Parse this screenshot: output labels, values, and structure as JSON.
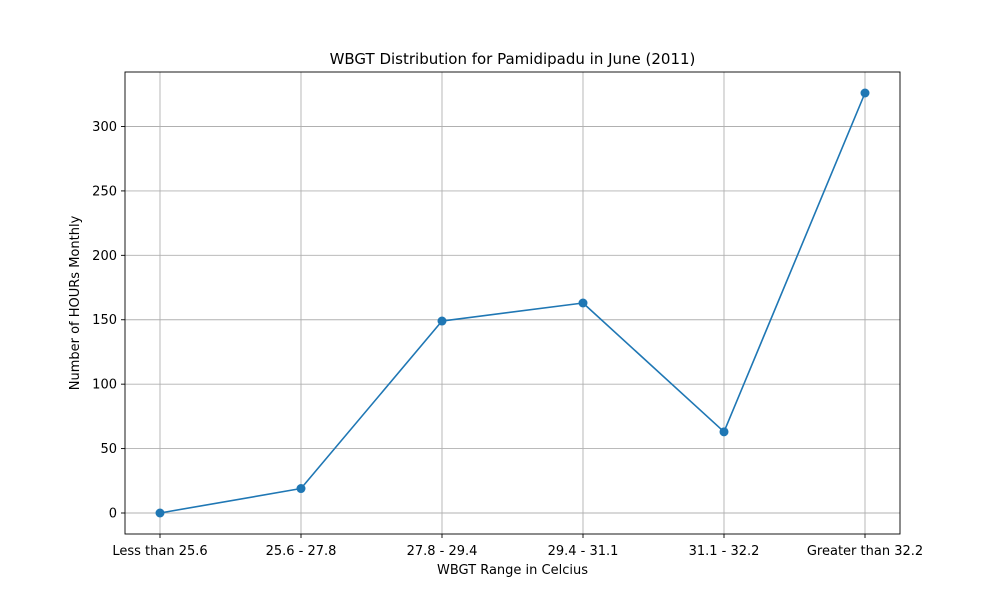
{
  "chart_data": {
    "type": "line",
    "title": "WBGT Distribution for Pamidipadu in June (2011)",
    "xlabel": "WBGT Range in Celcius",
    "ylabel": "Number of HOURs Monthly",
    "categories": [
      "Less than 25.6",
      "25.6 - 27.8",
      "27.8 - 29.4",
      "29.4 - 31.1",
      "31.1 - 32.2",
      "Greater than 32.2"
    ],
    "series": [
      {
        "values": [
          0,
          19,
          149,
          163,
          63,
          326
        ],
        "color": "#1f77b4",
        "marker": "circle"
      }
    ],
    "yticks": [
      0,
      50,
      100,
      150,
      200,
      250,
      300
    ],
    "ylim": [
      -16.3,
      342.3
    ],
    "grid": true,
    "legend": "none"
  }
}
